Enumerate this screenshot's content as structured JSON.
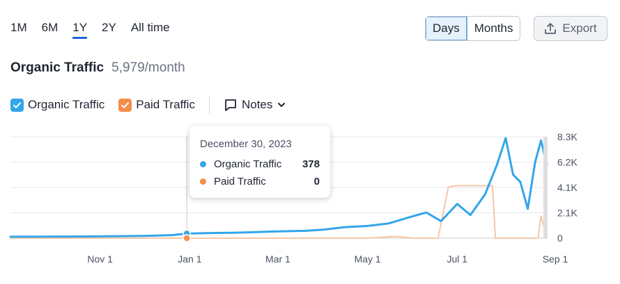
{
  "ranges": [
    "1M",
    "6M",
    "1Y",
    "2Y",
    "All time"
  ],
  "active_range": "1Y",
  "granularity": {
    "days": "Days",
    "months": "Months",
    "active": "Days"
  },
  "export_label": "Export",
  "title": "Organic Traffic",
  "title_value": "5,979/month",
  "legend": {
    "organic_label": "Organic Traffic",
    "paid_label": "Paid Traffic",
    "notes_label": "Notes"
  },
  "colors": {
    "organic": "#33a5eb",
    "paid": "#f48e4c",
    "paid_line": "#f7c7a9",
    "accent": "#1f63d6"
  },
  "tooltip": {
    "date": "December 30, 2023",
    "organic_label": "Organic Traffic",
    "organic_value": "378",
    "paid_label": "Paid Traffic",
    "paid_value": "0"
  },
  "chart_data": {
    "type": "line",
    "x_tick_labels": [
      "Nov 1",
      "Jan 1",
      "Mar 1",
      "May 1",
      "Jul 1",
      "Sep 1"
    ],
    "y_tick_labels": [
      "0",
      "2.1K",
      "4.1K",
      "6.2K",
      "8.3K"
    ],
    "ylim": [
      0,
      8300
    ],
    "series": [
      {
        "name": "Organic Traffic",
        "x": [
          "2023-09-01",
          "2023-10-01",
          "2023-11-01",
          "2023-12-01",
          "2023-12-20",
          "2023-12-30",
          "2024-01-15",
          "2024-02-01",
          "2024-02-15",
          "2024-03-01",
          "2024-03-20",
          "2024-04-01",
          "2024-04-15",
          "2024-05-01",
          "2024-05-15",
          "2024-06-01",
          "2024-06-10",
          "2024-06-20",
          "2024-07-01",
          "2024-07-10",
          "2024-07-20",
          "2024-07-28",
          "2024-08-03",
          "2024-08-08",
          "2024-08-13",
          "2024-08-18",
          "2024-08-23",
          "2024-08-27",
          "2024-08-31"
        ],
        "values": [
          120,
          130,
          150,
          180,
          250,
          378,
          420,
          450,
          500,
          550,
          600,
          700,
          900,
          1000,
          1200,
          1800,
          2100,
          1400,
          2800,
          1900,
          3600,
          6000,
          8200,
          5200,
          4600,
          2400,
          6200,
          8000,
          6000
        ]
      },
      {
        "name": "Paid Traffic",
        "x": [
          "2023-09-01",
          "2023-12-30",
          "2024-05-01",
          "2024-05-20",
          "2024-06-01",
          "2024-06-18",
          "2024-06-25",
          "2024-07-01",
          "2024-07-25",
          "2024-07-27",
          "2024-08-25",
          "2024-08-27",
          "2024-08-31"
        ],
        "values": [
          0,
          0,
          0,
          150,
          0,
          0,
          4200,
          4300,
          4300,
          0,
          0,
          1800,
          0
        ]
      }
    ]
  }
}
